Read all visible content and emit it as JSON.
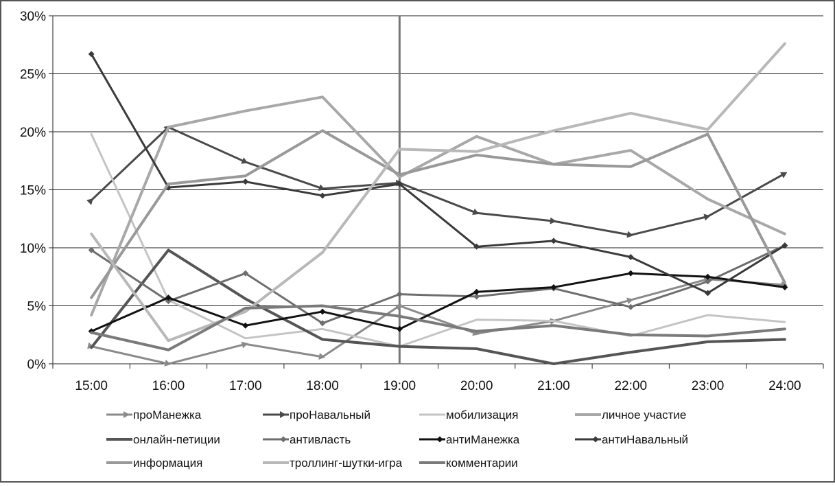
{
  "chart_data": {
    "type": "line",
    "title": "",
    "xlabel": "",
    "ylabel": "",
    "categories": [
      "15:00",
      "16:00",
      "17:00",
      "18:00",
      "19:00",
      "20:00",
      "21:00",
      "22:00",
      "23:00",
      "24:00"
    ],
    "y_ticks": [
      "0%",
      "5%",
      "10%",
      "15%",
      "20%",
      "25%",
      "30%"
    ],
    "ylim": [
      0,
      30
    ],
    "grid": "horizontal",
    "legend_position": "bottom",
    "vertical_marker_at": "19:00",
    "series": [
      {
        "name": "проМанежка",
        "color": "#8a8a8a",
        "width": 3,
        "marker": "arrow",
        "values": [
          1.5,
          0.0,
          1.7,
          0.6,
          5.0,
          2.6,
          3.7,
          5.5,
          7.3,
          6.8
        ]
      },
      {
        "name": "проНавальный",
        "color": "#4a4a4a",
        "width": 3,
        "marker": "arrow",
        "values": [
          14.1,
          20.4,
          17.4,
          15.1,
          15.6,
          13.0,
          12.3,
          11.1,
          12.7,
          16.4
        ]
      },
      {
        "name": "мобилизация",
        "color": "#c4c4c4",
        "width": 3,
        "marker": "none",
        "values": [
          19.8,
          5.5,
          2.2,
          3.0,
          1.5,
          3.8,
          3.7,
          2.4,
          4.2,
          3.6
        ]
      },
      {
        "name": "личное участие",
        "color": "#a8a8a8",
        "width": 4,
        "marker": "none",
        "values": [
          4.2,
          20.4,
          21.8,
          23.0,
          16.1,
          19.6,
          17.2,
          18.4,
          14.2,
          11.2
        ]
      },
      {
        "name": "онлайн-петиции",
        "color": "#555555",
        "width": 4,
        "marker": "none",
        "values": [
          1.4,
          9.8,
          5.6,
          2.1,
          1.5,
          1.3,
          0.0,
          1.0,
          1.9,
          2.1
        ]
      },
      {
        "name": "антивласть",
        "color": "#6e6e6e",
        "width": 3,
        "marker": "diamond",
        "values": [
          9.8,
          5.4,
          7.8,
          3.5,
          6.0,
          5.8,
          6.5,
          4.9,
          7.1,
          10.2
        ]
      },
      {
        "name": "антиМанежка",
        "color": "#111111",
        "width": 3,
        "marker": "diamond",
        "values": [
          2.8,
          5.7,
          3.3,
          4.5,
          3.0,
          6.2,
          6.6,
          7.8,
          7.5,
          6.6
        ]
      },
      {
        "name": "антиНавальный",
        "color": "#3a3a3a",
        "width": 3,
        "marker": "diamond",
        "values": [
          26.7,
          15.2,
          15.7,
          14.5,
          15.5,
          10.1,
          10.6,
          9.2,
          6.1,
          10.2
        ]
      },
      {
        "name": "информация",
        "color": "#999999",
        "width": 4,
        "marker": "none",
        "values": [
          5.7,
          15.5,
          16.2,
          20.1,
          16.3,
          18.0,
          17.2,
          17.0,
          19.8,
          7.0
        ]
      },
      {
        "name": "троллинг-шутки-игра",
        "color": "#b8b8b8",
        "width": 4,
        "marker": "none",
        "values": [
          11.2,
          2.0,
          4.5,
          9.6,
          18.5,
          18.3,
          20.1,
          21.6,
          20.2,
          27.6
        ]
      },
      {
        "name": "комментарии",
        "color": "#7a7a7a",
        "width": 4,
        "marker": "none",
        "values": [
          2.7,
          1.2,
          4.8,
          5.0,
          4.1,
          2.8,
          3.3,
          2.5,
          2.4,
          3.0
        ]
      }
    ]
  }
}
